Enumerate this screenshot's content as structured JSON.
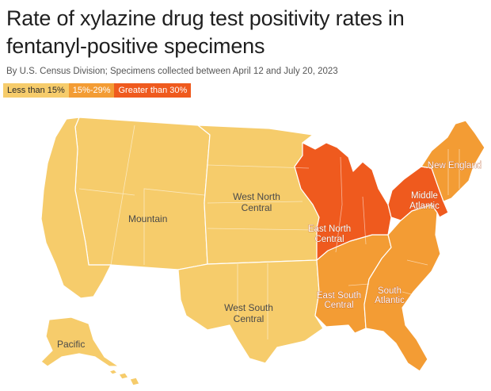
{
  "title": "Rate of xylazine drug test positivity rates in fentanyl-positive specimens",
  "subtitle": "By U.S. Census Division; Specimens collected between April 12 and July 20, 2023",
  "legend": {
    "low": "Less than 15%",
    "mid": "15%-29%",
    "high": "Greater than 30%"
  },
  "colors": {
    "low": "#f6cc6b",
    "mid": "#f39c34",
    "high": "#ef5a1e"
  },
  "divisions": {
    "pacific": {
      "label": "Pacific",
      "category": "Less than 15%"
    },
    "mountain": {
      "label": "Mountain",
      "category": "Less than 15%"
    },
    "west_north_central": {
      "label_1": "West North",
      "label_2": "Central",
      "category": "Less than 15%"
    },
    "west_south_central": {
      "label_1": "West South",
      "label_2": "Central",
      "category": "Less than 15%"
    },
    "east_north_central": {
      "label_1": "East North",
      "label_2": "Central",
      "category": "Greater than 30%"
    },
    "east_south_central": {
      "label_1": "East South",
      "label_2": "Central",
      "category": "15%-29%"
    },
    "south_atlantic": {
      "label_1": "South",
      "label_2": "Atlantic",
      "category": "15%-29%"
    },
    "middle_atlantic": {
      "label_1": "Middle",
      "label_2": "Atlantic",
      "category": "Greater than 30%"
    },
    "new_england": {
      "label": "New England",
      "category": "15%-29%"
    }
  }
}
